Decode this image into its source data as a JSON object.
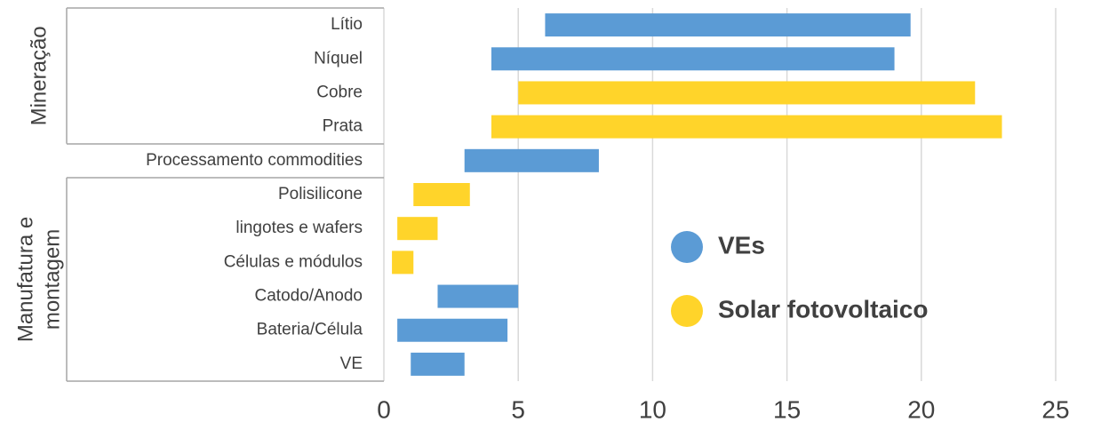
{
  "chart_data": {
    "type": "floating-bar",
    "categories": [
      "Lítio",
      "Níquel",
      "Cobre",
      "Prata",
      "Processamento commodities",
      "Polisilicone",
      "lingotes e wafers",
      "Células e módulos",
      "Catodo/Anodo",
      "Bateria/Célula",
      "VE"
    ],
    "groups": [
      {
        "lines": [
          "Mineração"
        ],
        "from": 0,
        "to": 3
      },
      {
        "lines": [
          "Manufatura e",
          "montagem"
        ],
        "from": 5,
        "to": 10
      }
    ],
    "series": [
      {
        "name": "VEs",
        "color": "#5b9bd5",
        "low": [
          6,
          4,
          null,
          null,
          3,
          null,
          null,
          null,
          2,
          0.5,
          1
        ],
        "high": [
          19.6,
          19,
          null,
          null,
          8,
          null,
          null,
          null,
          5,
          4.6,
          3
        ]
      },
      {
        "name": "Solar fotovoltaico",
        "color": "#ffd42a",
        "low": [
          null,
          null,
          5,
          4,
          null,
          1.1,
          0.5,
          0.3,
          null,
          null,
          null
        ],
        "high": [
          null,
          null,
          22,
          23,
          null,
          3.2,
          2,
          1.1,
          null,
          null,
          null
        ]
      }
    ],
    "xlim": [
      0,
      25
    ],
    "xticks": [
      0,
      5,
      10,
      15,
      20,
      25
    ],
    "grid": true
  }
}
